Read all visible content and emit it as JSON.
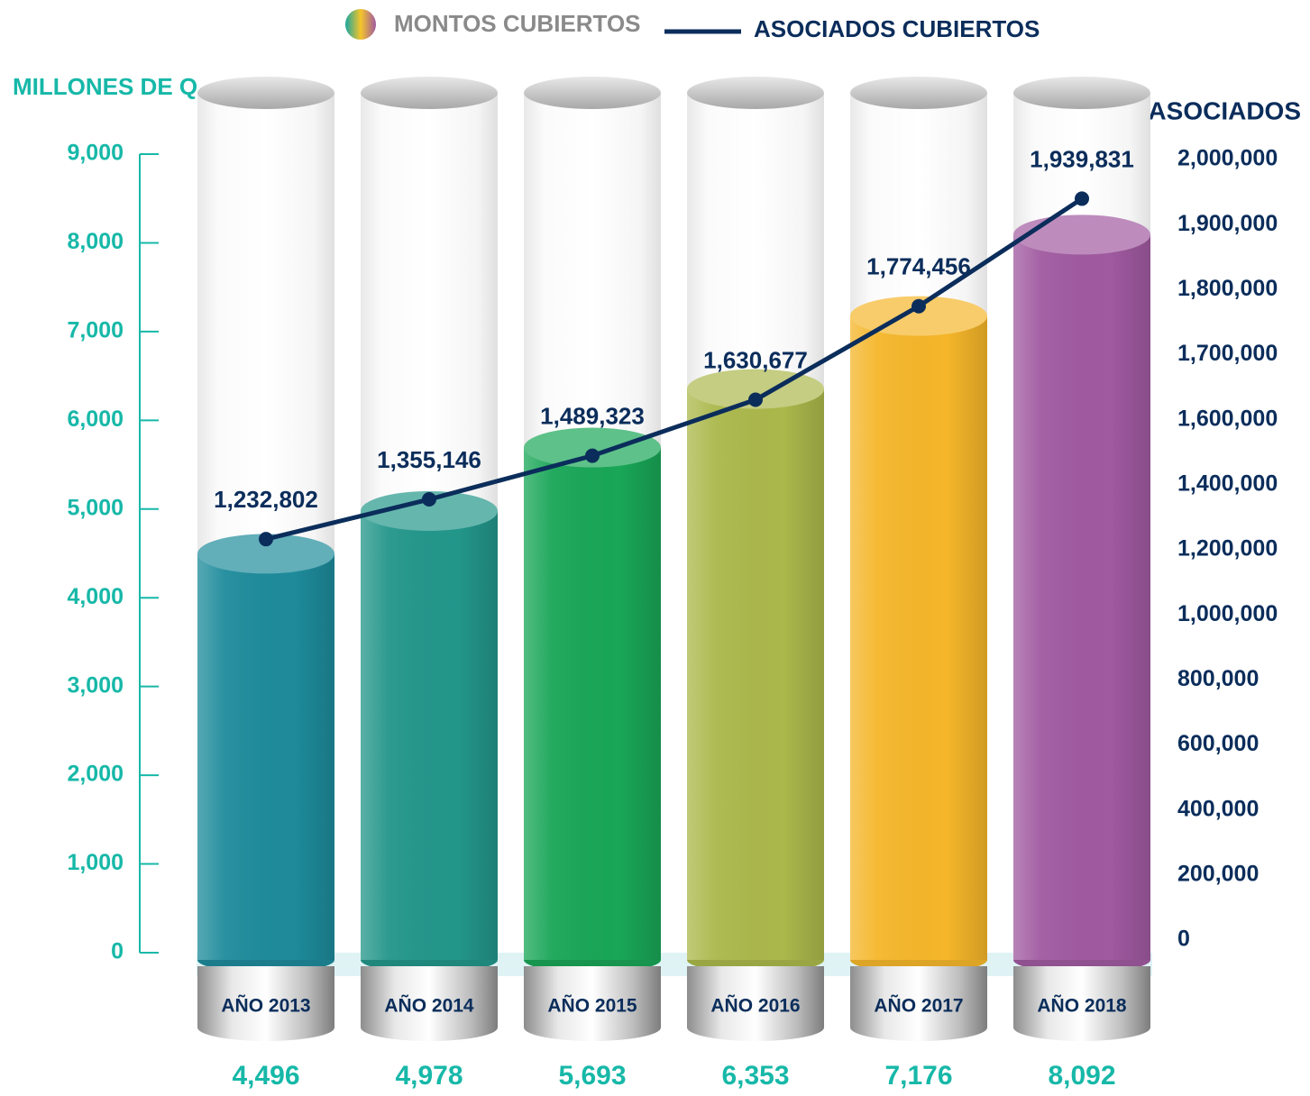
{
  "chart_data": {
    "type": "bar_line",
    "categories": [
      "AÑO 2013",
      "AÑO 2014",
      "AÑO 2015",
      "AÑO 2016",
      "AÑO 2017",
      "AÑO 2018"
    ],
    "series": [
      {
        "name": "MONTOS CUBIERTOS",
        "type": "bar",
        "colors": [
          "#1e8b9b",
          "#23968a",
          "#19a657",
          "#abb84b",
          "#f5b62a",
          "#a05aa0"
        ],
        "values": [
          4496,
          4978,
          5693,
          6353,
          7176,
          8092
        ],
        "value_labels": [
          "4,496",
          "4,978",
          "5,693",
          "6,353",
          "7,176",
          "8,092"
        ]
      },
      {
        "name": "ASOCIADOS CUBIERTOS",
        "type": "line",
        "axis": "y2",
        "color": "#0b2d5b",
        "values": [
          1232802,
          1355146,
          1489323,
          1630677,
          1774456,
          1939831
        ],
        "value_labels": [
          "1,232,802",
          "1,355,146",
          "1,489,323",
          "1,630,677",
          "1,774,456",
          "1,939,831"
        ]
      }
    ],
    "ylabel": "MILLONES DE Q.",
    "y2label": "ASOCIADOS",
    "ylim": [
      0,
      9000
    ],
    "yticks": [
      0,
      {
        "value": 1000,
        "label": "1,000"
      },
      {
        "value": 2000,
        "label": "2,000"
      },
      {
        "value": 3000,
        "label": "3,000"
      },
      {
        "value": 4000,
        "label": "4,000"
      },
      {
        "value": 5000,
        "label": "5,000"
      },
      {
        "value": 6000,
        "label": "6,000"
      },
      {
        "value": 7000,
        "label": "7,000"
      },
      {
        "value": 8000,
        "label": "8,000"
      },
      {
        "value": 9000,
        "label": "9,000"
      }
    ],
    "y2lim": [
      0,
      2000000
    ],
    "y2ticks": [
      0,
      {
        "value": 200000,
        "label": "200,000"
      },
      {
        "value": 400000,
        "label": "400,000"
      },
      {
        "value": 600000,
        "label": "600,000"
      },
      {
        "value": 800000,
        "label": "800,000"
      },
      {
        "value": 1000000,
        "label": "1,000,000"
      },
      {
        "value": 1200000,
        "label": "1,200,000"
      },
      {
        "value": 1400000,
        "label": "1,400,000"
      },
      {
        "value": 1600000,
        "label": "1,600,000"
      },
      {
        "value": 1700000,
        "label": "1,700,000"
      },
      {
        "value": 1800000,
        "label": "1,800,000"
      },
      {
        "value": 1900000,
        "label": "1,900,000"
      },
      {
        "value": 2000000,
        "label": "2,000,000"
      }
    ]
  }
}
